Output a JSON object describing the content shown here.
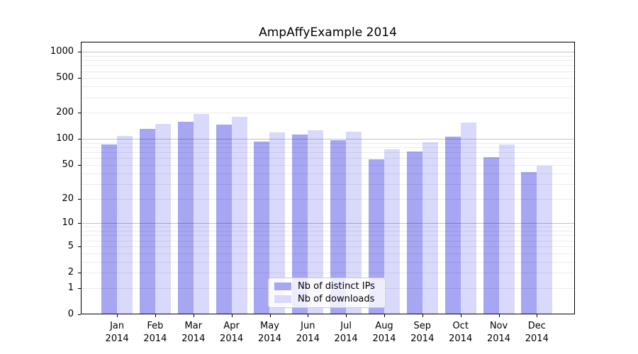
{
  "chart_data": {
    "type": "bar",
    "title": "AmpAffyExample 2014",
    "categories": [
      "Jan",
      "Feb",
      "Mar",
      "Apr",
      "May",
      "Jun",
      "Jul",
      "Aug",
      "Sep",
      "Oct",
      "Nov",
      "Dec"
    ],
    "xtick_year": "2014",
    "series": [
      {
        "name": "Nb of distinct IPs",
        "color": "#a6a6f2",
        "values": [
          87,
          130,
          157,
          146,
          93,
          112,
          97,
          58,
          71,
          106,
          62,
          41
        ]
      },
      {
        "name": "Nb of downloads",
        "color": "#d9d9fb",
        "values": [
          108,
          150,
          192,
          178,
          120,
          126,
          121,
          75,
          91,
          154,
          86,
          49
        ]
      }
    ],
    "yscale": "log1p",
    "yticks": [
      0,
      1,
      2,
      5,
      10,
      20,
      50,
      100,
      200,
      500,
      1000
    ],
    "ylim": [
      0,
      1300
    ],
    "grid": {
      "which": "both",
      "minor_decades": [
        1,
        10,
        100
      ],
      "major_decade_lines": [
        10,
        100,
        1000
      ]
    },
    "legend": {
      "location": "lower center",
      "labels": [
        "Nb of distinct IPs",
        "Nb of downloads"
      ]
    }
  }
}
